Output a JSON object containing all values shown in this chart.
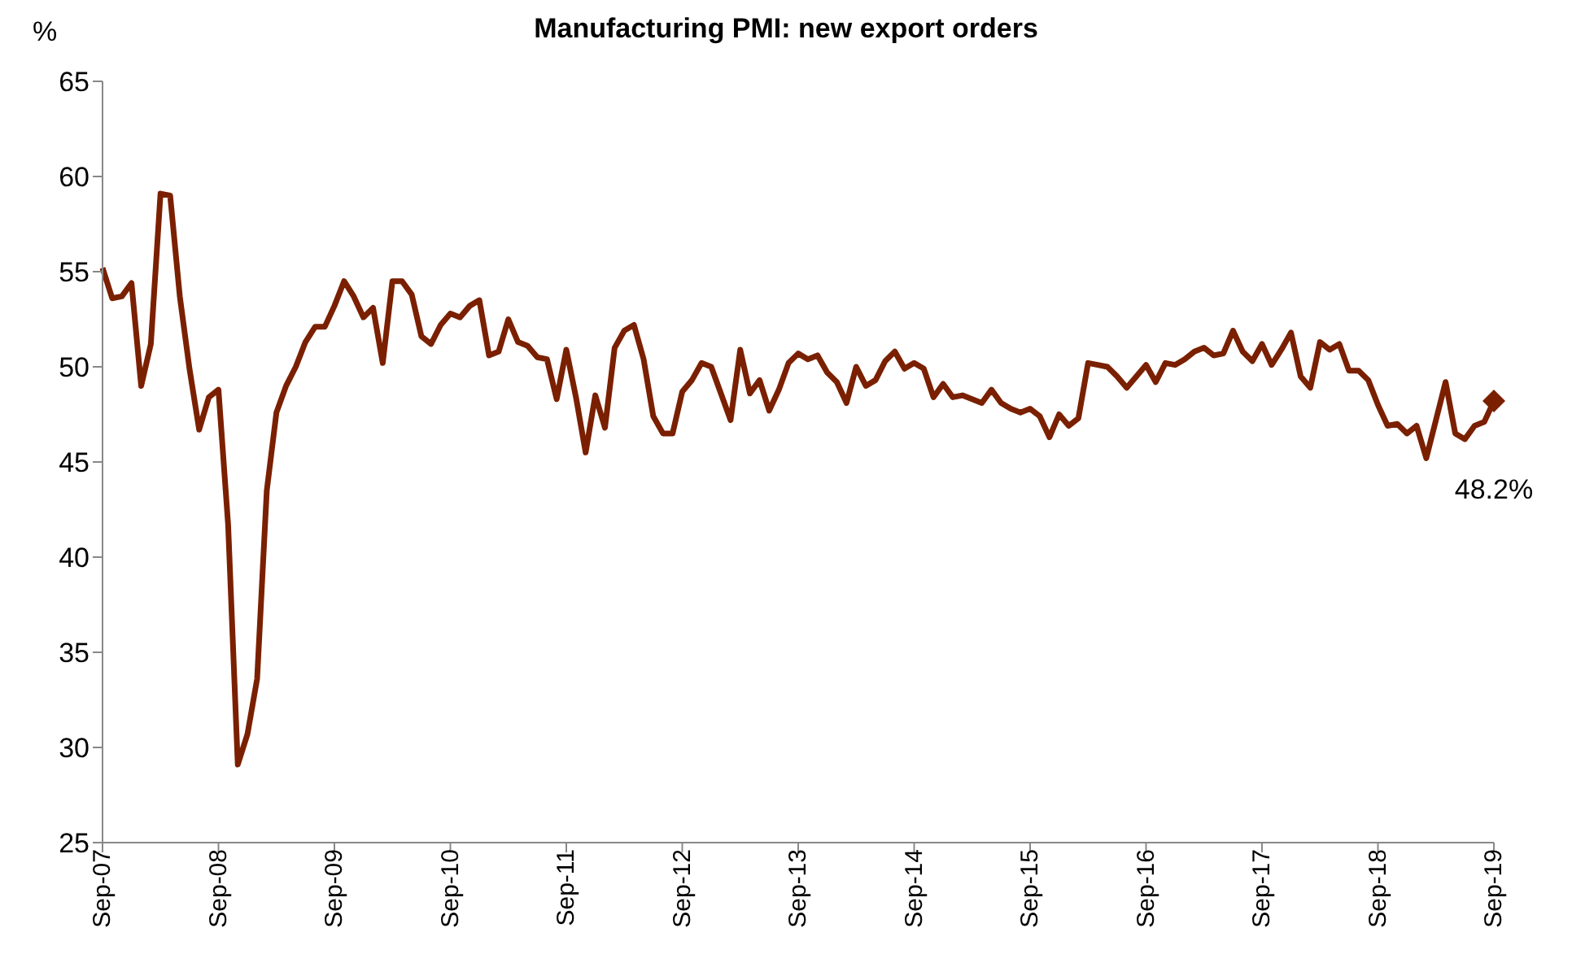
{
  "chart_data": {
    "type": "line",
    "title": "Manufacturing PMI: new export orders",
    "ylabel": "%",
    "categories": [
      "Sep-07",
      null,
      null,
      null,
      null,
      null,
      null,
      null,
      null,
      null,
      null,
      null,
      "Sep-08",
      null,
      null,
      null,
      null,
      null,
      null,
      null,
      null,
      null,
      null,
      null,
      "Sep-09",
      null,
      null,
      null,
      null,
      null,
      null,
      null,
      null,
      null,
      null,
      null,
      "Sep-10",
      null,
      null,
      null,
      null,
      null,
      null,
      null,
      null,
      null,
      null,
      null,
      "Sep-11",
      null,
      null,
      null,
      null,
      null,
      null,
      null,
      null,
      null,
      null,
      null,
      "Sep-12",
      null,
      null,
      null,
      null,
      null,
      null,
      null,
      null,
      null,
      null,
      null,
      "Sep-13",
      null,
      null,
      null,
      null,
      null,
      null,
      null,
      null,
      null,
      null,
      null,
      "Sep-14",
      null,
      null,
      null,
      null,
      null,
      null,
      null,
      null,
      null,
      null,
      null,
      "Sep-15",
      null,
      null,
      null,
      null,
      null,
      null,
      null,
      null,
      null,
      null,
      null,
      "Sep-16",
      null,
      null,
      null,
      null,
      null,
      null,
      null,
      null,
      null,
      null,
      null,
      "Sep-17",
      null,
      null,
      null,
      null,
      null,
      null,
      null,
      null,
      null,
      null,
      null,
      "Sep-18",
      null,
      null,
      null,
      null,
      null,
      null,
      null,
      null,
      null,
      null,
      null,
      "Sep-19"
    ],
    "series": [
      {
        "color": "#7a2000",
        "values": [
          55.2,
          53.6,
          53.7,
          54.4,
          49.0,
          51.2,
          59.1,
          59.0,
          53.7,
          49.9,
          46.7,
          48.4,
          48.8,
          41.7,
          29.1,
          30.7,
          33.6,
          43.5,
          47.6,
          49.0,
          50.0,
          51.3,
          52.1,
          52.1,
          53.2,
          54.5,
          53.7,
          52.6,
          53.1,
          50.2,
          54.5,
          54.5,
          53.8,
          51.6,
          51.2,
          52.2,
          52.8,
          52.6,
          53.2,
          53.5,
          50.6,
          50.8,
          52.5,
          51.3,
          51.1,
          50.5,
          50.4,
          48.3,
          50.9,
          48.4,
          45.5,
          48.5,
          46.8,
          51.0,
          51.9,
          52.2,
          50.4,
          47.4,
          46.5,
          46.5,
          48.7,
          49.3,
          50.2,
          50.0,
          48.6,
          47.2,
          50.9,
          48.6,
          49.3,
          47.7,
          48.8,
          50.2,
          50.7,
          50.4,
          50.6,
          49.7,
          49.2,
          48.1,
          50.0,
          49.0,
          49.3,
          50.3,
          50.8,
          49.9,
          50.2,
          49.9,
          48.4,
          49.1,
          48.4,
          48.5,
          48.3,
          48.1,
          48.8,
          48.1,
          47.8,
          47.6,
          47.8,
          47.4,
          46.3,
          47.5,
          46.9,
          47.3,
          50.2,
          50.1,
          50.0,
          49.5,
          48.9,
          49.5,
          50.1,
          49.2,
          50.2,
          50.1,
          50.4,
          50.8,
          51.0,
          50.6,
          50.7,
          51.9,
          50.8,
          50.3,
          51.2,
          50.1,
          50.9,
          51.8,
          49.5,
          48.9,
          51.3,
          50.9,
          51.2,
          49.8,
          49.8,
          49.3,
          48.0,
          46.9,
          47.0,
          46.5,
          46.9,
          45.2,
          47.2,
          49.2,
          46.5,
          46.2,
          46.9,
          47.1,
          48.2
        ]
      },
      {
        "type": "scatter",
        "color": "#7a2000",
        "marker": "diamond",
        "x": [
          "Sep-19"
        ],
        "values": [
          48.2
        ]
      }
    ],
    "annotations": [
      {
        "text": "48.2%",
        "x": "Sep-19",
        "y": 48.2
      }
    ],
    "ylim": [
      25,
      65
    ],
    "yticks": [
      25,
      30,
      35,
      40,
      45,
      50,
      55,
      60,
      65
    ],
    "grid": false,
    "marker": "none",
    "line_style": "solid"
  }
}
